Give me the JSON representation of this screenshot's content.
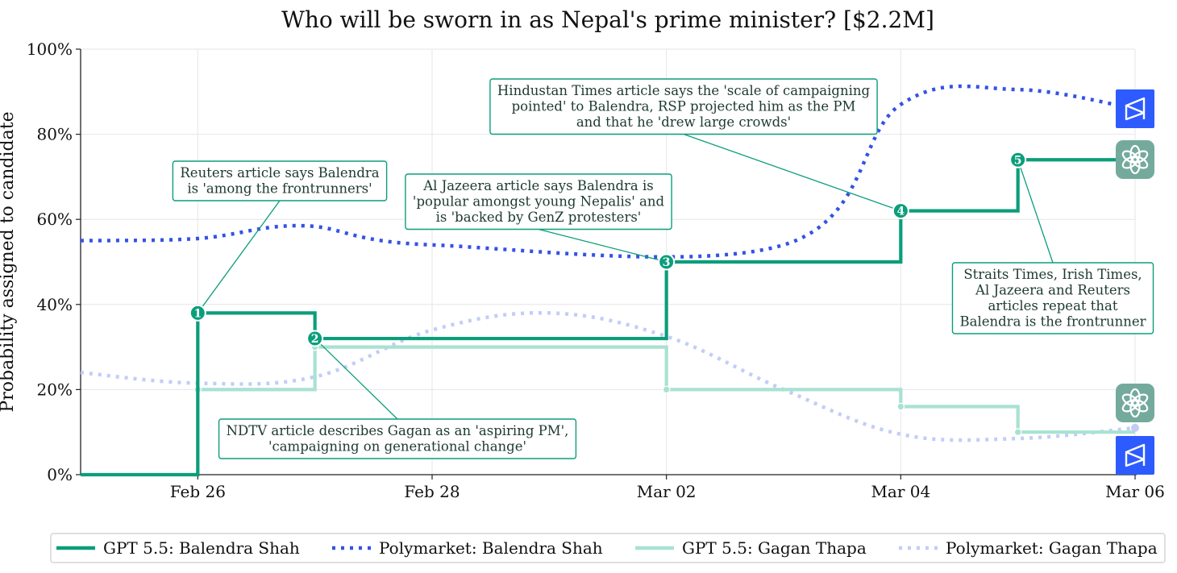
{
  "chart_data": {
    "type": "line",
    "title": "Who will be sworn in as Nepal's prime minister? [$2.2M]",
    "ylabel": "Probability assigned to candidate",
    "xlabel": "",
    "x_ticks": [
      "Feb 26",
      "Feb 28",
      "Mar 02",
      "Mar 04",
      "Mar 06"
    ],
    "y_ticks": [
      "0%",
      "20%",
      "40%",
      "60%",
      "80%",
      "100%"
    ],
    "xlim": [
      "2026-02-25",
      "2026-03-06"
    ],
    "ylim": [
      0,
      100
    ],
    "grid": true,
    "legend_position": "bottom",
    "series": [
      {
        "name": "GPT 5.5: Balendra Shah",
        "style": "step",
        "color": "#0b9e7a",
        "points": [
          [
            "2026-02-25",
            0
          ],
          [
            "2026-02-26",
            38
          ],
          [
            "2026-02-27",
            32
          ],
          [
            "2026-03-02",
            50
          ],
          [
            "2026-03-04",
            62
          ],
          [
            "2026-03-05",
            74
          ],
          [
            "2026-03-06",
            74
          ]
        ],
        "end_icon": "openai-logo-icon"
      },
      {
        "name": "Polymarket: Balendra Shah",
        "style": "dotted",
        "color": "#3452e6",
        "points": [
          [
            "2026-02-25",
            55
          ],
          [
            "2026-02-26",
            55.5
          ],
          [
            "2026-02-26.9",
            58.5
          ],
          [
            "2026-02-28",
            54
          ],
          [
            "2026-03-03",
            54
          ],
          [
            "2026-03-04",
            87
          ],
          [
            "2026-03-05",
            90.5
          ],
          [
            "2026-03-06",
            86
          ]
        ],
        "end_icon": "polymarket-logo-icon"
      },
      {
        "name": "GPT 5.5: Gagan Thapa",
        "style": "step",
        "color": "#a8e2d2",
        "points": [
          [
            "2026-02-26",
            20
          ],
          [
            "2026-02-27",
            30
          ],
          [
            "2026-03-02",
            20
          ],
          [
            "2026-03-04",
            16
          ],
          [
            "2026-03-05",
            10
          ],
          [
            "2026-03-06",
            10
          ]
        ],
        "end_icon": "openai-logo-icon"
      },
      {
        "name": "Polymarket: Gagan Thapa",
        "style": "dotted",
        "color": "#c2cdf7",
        "points": [
          [
            "2026-02-25",
            24
          ],
          [
            "2026-02-26",
            21.5
          ],
          [
            "2026-02-27",
            23
          ],
          [
            "2026-02-28",
            34
          ],
          [
            "2026-03-01",
            38
          ],
          [
            "2026-03-02",
            32.5
          ],
          [
            "2026-03-03",
            20
          ],
          [
            "2026-03-04",
            9.5
          ],
          [
            "2026-03-05",
            8.5
          ],
          [
            "2026-03-06",
            11
          ]
        ],
        "end_icon": "polymarket-logo-icon"
      }
    ],
    "annotations": [
      {
        "number": "1",
        "x": "2026-02-26",
        "y": 38,
        "lines": [
          "Reuters article says Balendra",
          "is 'among the frontrunners'"
        ]
      },
      {
        "number": "2",
        "x": "2026-02-27",
        "y": 32,
        "lines": [
          "NDTV article describes Gagan as an 'aspiring PM',",
          "'campaigning on generational change'"
        ]
      },
      {
        "number": "3",
        "x": "2026-03-02",
        "y": 50,
        "lines": [
          "Al Jazeera article says Balendra is",
          "'popular amongst young Nepalis' and",
          "is 'backed by GenZ protesters'"
        ]
      },
      {
        "number": "4",
        "x": "2026-03-04",
        "y": 62,
        "lines": [
          "Hindustan Times article says the 'scale of campaigning",
          "pointed' to Balendra, RSP projected him as the PM",
          "and that he 'drew large crowds'"
        ]
      },
      {
        "number": "5",
        "x": "2026-03-05",
        "y": 74,
        "lines": [
          "Straits Times, Irish Times,",
          "Al Jazeera and Reuters",
          "articles repeat that",
          "Balendra is the frontrunner"
        ]
      }
    ],
    "colors": {
      "gpt_balendra": "#0b9e7a",
      "poly_balendra": "#3452e6",
      "gpt_gagan": "#a8e2d2",
      "poly_gagan": "#c2cdf7",
      "openai_icon_bg": "#74aa9c",
      "polymarket_icon_bg": "#2d5bff"
    }
  }
}
